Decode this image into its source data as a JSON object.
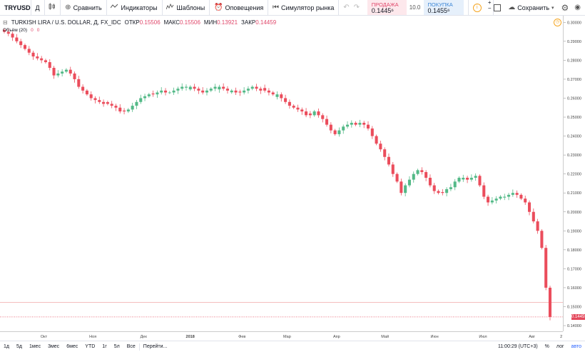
{
  "toolbar": {
    "symbol": "TRYUSD",
    "interval": "Д",
    "compare_label": "Сравнить",
    "indicators_label": "Индикаторы",
    "templates_label": "Шаблоны",
    "alerts_label": "Оповещения",
    "replay_label": "Симулятор рынка",
    "sell_label": "ПРОДАЖА",
    "sell_value": "0.1445⁶",
    "spread": "10.0",
    "buy_label": "ПОКУПКА",
    "buy_value": "0.1455⁶",
    "save_label": "Сохранить"
  },
  "legend": {
    "title": "TURKISH LIRA / U.S. DOLLAR, Д, FX_IDC",
    "open_label": "ОТКР",
    "open": "0.15506",
    "high_label": "МАКС",
    "high": "0.15506",
    "low_label": "МИН",
    "low": "0.13921",
    "close_label": "ЗАКР",
    "close": "0.14459",
    "volume_label": "Объём (20)",
    "volume_v1": "0",
    "volume_v2": "0"
  },
  "price_axis": {
    "ticks": [
      "0.30000",
      "0.29000",
      "0.28000",
      "0.27000",
      "0.26000",
      "0.25000",
      "0.24000",
      "0.23000",
      "0.22000",
      "0.21000",
      "0.20000",
      "0.19000",
      "0.18000",
      "0.17000",
      "0.16000",
      "0.15000",
      "0.14000"
    ],
    "last_price": "0.14459"
  },
  "time_axis": {
    "labels": [
      "Окт",
      "Ноя",
      "Дек",
      "2018",
      "Фев",
      "Мар",
      "Апр",
      "Май",
      "Июн",
      "Июл",
      "Авг",
      "2"
    ]
  },
  "bottom_bar": {
    "ranges": [
      "1д",
      "5д",
      "1мес",
      "3мес",
      "6мес",
      "YTD",
      "1г",
      "5л",
      "Все"
    ],
    "goto_label": "Перейти...",
    "time": "11:00:29 (UTC+3)",
    "pct": "%",
    "log": "лог",
    "auto": "авто"
  },
  "colors": {
    "up": "#53b987",
    "down": "#eb4d5c",
    "price_line": "#e4495c"
  },
  "chart_data": {
    "type": "candlestick",
    "title": "TURKISH LIRA / U.S. DOLLAR, Д, FX_IDC",
    "ylim": [
      0.137,
      0.3035
    ],
    "x": [
      "Окт",
      "Ноя",
      "Дек",
      "2018",
      "Фев",
      "Мар",
      "Апр",
      "Май",
      "Июн",
      "Июл",
      "Авг"
    ],
    "close_path": [
      0.295,
      0.294,
      0.292,
      0.29,
      0.288,
      0.286,
      0.284,
      0.282,
      0.281,
      0.28,
      0.279,
      0.276,
      0.272,
      0.273,
      0.274,
      0.275,
      0.273,
      0.27,
      0.266,
      0.264,
      0.262,
      0.26,
      0.259,
      0.258,
      0.257,
      0.257,
      0.256,
      0.255,
      0.253,
      0.253,
      0.254,
      0.256,
      0.258,
      0.26,
      0.261,
      0.262,
      0.262,
      0.263,
      0.264,
      0.263,
      0.263,
      0.264,
      0.265,
      0.266,
      0.266,
      0.266,
      0.265,
      0.264,
      0.263,
      0.264,
      0.265,
      0.266,
      0.266,
      0.265,
      0.264,
      0.264,
      0.263,
      0.263,
      0.264,
      0.265,
      0.266,
      0.265,
      0.264,
      0.264,
      0.263,
      0.262,
      0.262,
      0.26,
      0.258,
      0.256,
      0.255,
      0.254,
      0.253,
      0.251,
      0.251,
      0.253,
      0.251,
      0.249,
      0.246,
      0.243,
      0.241,
      0.243,
      0.245,
      0.246,
      0.247,
      0.246,
      0.247,
      0.246,
      0.244,
      0.24,
      0.236,
      0.233,
      0.229,
      0.225,
      0.22,
      0.216,
      0.21,
      0.214,
      0.217,
      0.22,
      0.222,
      0.221,
      0.218,
      0.214,
      0.211,
      0.21,
      0.21,
      0.212,
      0.213,
      0.216,
      0.218,
      0.218,
      0.217,
      0.218,
      0.219,
      0.214,
      0.208,
      0.205,
      0.206,
      0.207,
      0.208,
      0.208,
      0.209,
      0.21,
      0.209,
      0.207,
      0.205,
      0.2,
      0.195,
      0.19,
      0.181,
      0.16,
      0.14459
    ]
  }
}
